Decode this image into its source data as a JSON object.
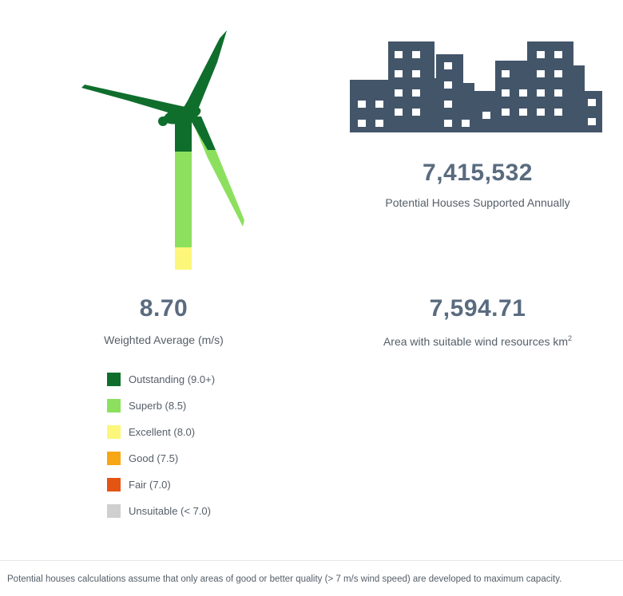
{
  "turbine": {
    "icon": "wind-turbine-icon",
    "colors": {
      "top": "#0f6e2c",
      "middle": "#8ce05e",
      "bottom": "#fcf77a",
      "blade": "#0f6e2c",
      "blade_lower": "#8ce05e"
    }
  },
  "building": {
    "icon": "city-buildings-icon",
    "color": "#435569"
  },
  "stats": {
    "houses": {
      "value": "7,415,532",
      "caption": "Potential Houses Supported Annually"
    },
    "average": {
      "value": "8.70",
      "caption": "Weighted Average (m/s)"
    },
    "area": {
      "value": "7,594.71",
      "caption": "Area with suitable wind resources km",
      "unit_superscript": "2"
    }
  },
  "legend": [
    {
      "label": "Outstanding (9.0+)",
      "color": "#0f6e2c"
    },
    {
      "label": "Superb (8.5)",
      "color": "#8ce05e"
    },
    {
      "label": "Excellent (8.0)",
      "color": "#fcf77a"
    },
    {
      "label": "Good (7.5)",
      "color": "#f7a614"
    },
    {
      "label": "Fair (7.0)",
      "color": "#e45413"
    },
    {
      "label": "Unsuitable (< 7.0)",
      "color": "#cfcfcf"
    }
  ],
  "footnote": "Potential houses calculations assume that only areas of good or better quality (> 7 m/s wind speed) are developed to maximum capacity."
}
